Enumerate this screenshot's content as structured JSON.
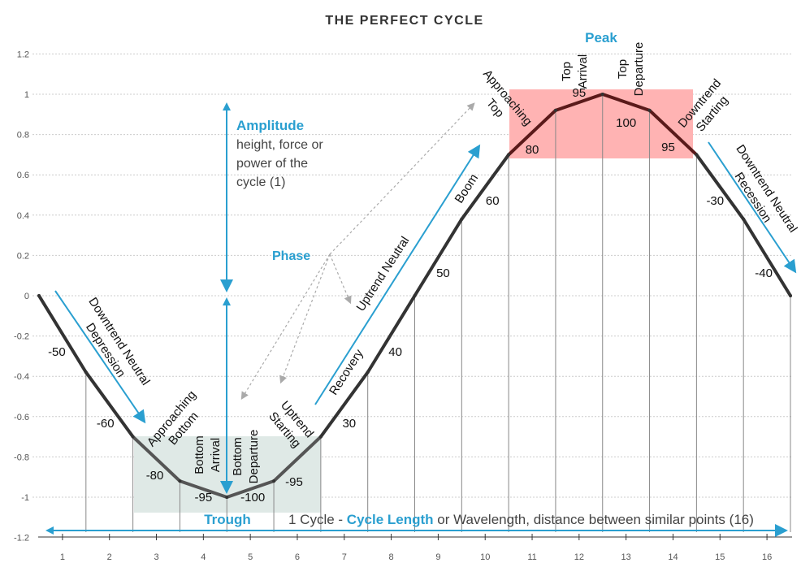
{
  "title": "THE PERFECT CYCLE",
  "colors": {
    "line": "#333333",
    "peak_line": "#5a1a1a",
    "accent": "#2a9fd0",
    "peak_fill": "#ffb3b3",
    "trough_fill": "#dfe9e6"
  },
  "chart_data": {
    "type": "line",
    "title": "THE PERFECT CYCLE",
    "xlim": [
      0.5,
      16.5
    ],
    "ylim": [
      -1.2,
      1.2
    ],
    "grid": true,
    "x_ticks": [
      "1",
      "2",
      "3",
      "4",
      "5",
      "6",
      "7",
      "8",
      "9",
      "10",
      "11",
      "12",
      "13",
      "14",
      "15",
      "16"
    ],
    "y_ticks": [
      "1.2",
      "1",
      "0.8",
      "0.6",
      "0.4",
      "0.2",
      "0",
      "-0.2",
      "-0.4",
      "-0.6",
      "-0.8",
      "-1",
      "-1.2"
    ],
    "x": [
      0.5,
      1.5,
      2.5,
      3.5,
      4.5,
      5.5,
      6.5,
      7.5,
      8.5,
      9.5,
      10.5,
      11.5,
      12.5,
      13.5,
      14.5,
      15.5,
      16.5
    ],
    "y": [
      0,
      -0.38,
      -0.7,
      -0.92,
      -1,
      -0.92,
      -0.7,
      -0.38,
      0,
      0.38,
      0.7,
      0.92,
      1,
      0.92,
      0.7,
      0.38,
      0
    ],
    "segment_labels": [
      "-50",
      "-60",
      "-80",
      "-95",
      "-100",
      "-95",
      "30",
      "40",
      "50",
      "60",
      "80",
      "95",
      "100",
      "95",
      "-30",
      "-40"
    ]
  },
  "annotations": {
    "downtrend_neutral": "Downtrend Neutral",
    "depression": "Depression",
    "approaching": "Approaching",
    "bottom": "Bottom",
    "arrival": "Arrival",
    "departure": "Departure",
    "uptrend": "Uptrend",
    "starting": "Starting",
    "recovery": "Recovery",
    "uptrend_neutral": "Uptrend Neutral",
    "boom": "Boom",
    "top": "Top",
    "downtrend": "Downtrend",
    "recession": "Recession",
    "amplitude": "Amplitude",
    "amp_line1": "height, force or",
    "amp_line2": "power of the",
    "amp_line3": "cycle (1)",
    "phase": "Phase",
    "peak": "Peak",
    "trough": "Trough",
    "cycle_a": "1 Cycle - ",
    "cycle_b": "Cycle Length",
    "cycle_c": " or Wavelength, distance between similar points  (16)"
  }
}
